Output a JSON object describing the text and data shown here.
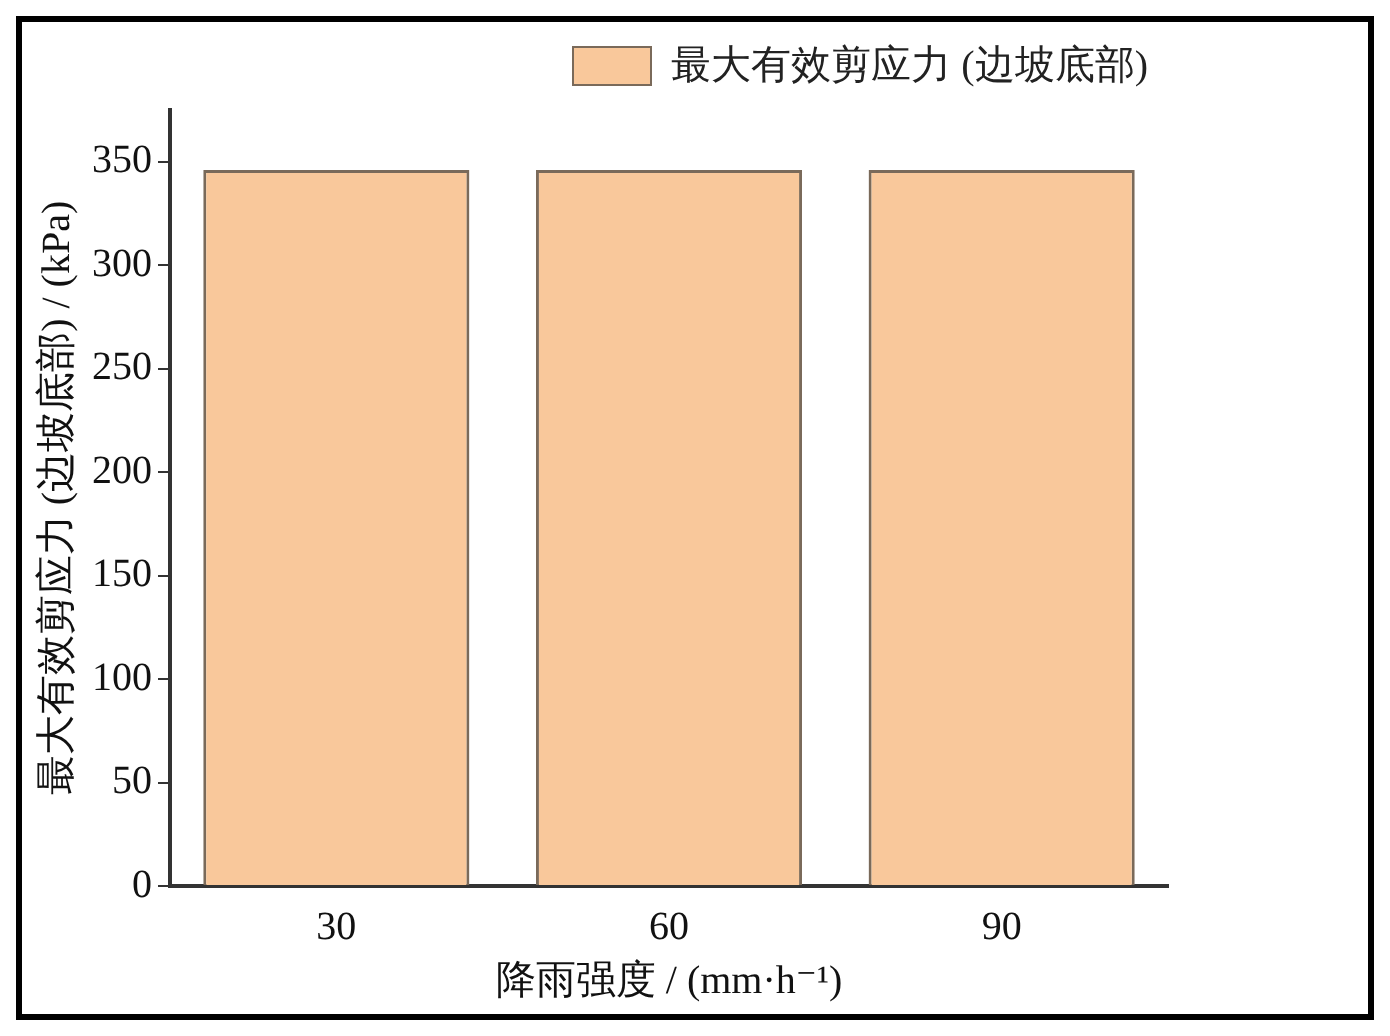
{
  "chart_data": {
    "type": "bar",
    "xlabel": "降雨强度 / (mm·h⁻¹)",
    "ylabel": "最大有效剪应力 (边坡底部) / (kPa)",
    "categories": [
      "30",
      "60",
      "90"
    ],
    "series": [
      {
        "name": "最大有效剪应力 (边坡底部)",
        "color": "#f9c89b",
        "values": [
          346,
          346,
          346
        ]
      }
    ],
    "ylim": [
      0,
      375
    ],
    "yticks": [
      0,
      50,
      100,
      150,
      200,
      250,
      300,
      350
    ],
    "grid": false,
    "legend": "top right"
  }
}
